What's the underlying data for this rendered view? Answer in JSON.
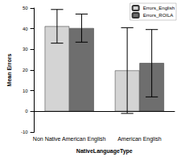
{
  "chart_data": {
    "type": "bar",
    "x_label": "NativeLanguageType",
    "y_label": "Mean Errors",
    "categories": [
      "Non Native American English",
      "American English"
    ],
    "series": [
      {
        "name": "Errors_English",
        "color": "#d4d4d4",
        "values": [
          41.2,
          19.8
        ],
        "error_low": [
          33.0,
          -1.0
        ],
        "error_high": [
          49.3,
          40.5
        ]
      },
      {
        "name": "Errors_ROILA",
        "color": "#6e6e6e",
        "values": [
          40.3,
          23.4
        ],
        "error_low": [
          33.5,
          7.0
        ],
        "error_high": [
          47.1,
          39.6
        ]
      }
    ],
    "ylim": [
      -10,
      50
    ],
    "yticks": [
      -10,
      0,
      10,
      20,
      30,
      40,
      50
    ],
    "legend": "top-right",
    "grid": false
  }
}
